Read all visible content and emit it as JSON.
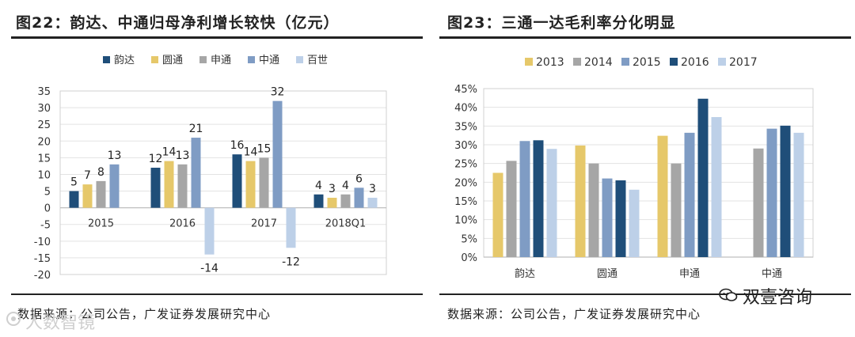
{
  "left": {
    "title": "图22：韵达、中通归母净利增长较快（亿元）",
    "source": "数据来源：公司公告，广发证券发展研究中心",
    "chart_data": {
      "type": "bar",
      "title": "图22：韵达、中通归母净利增长较快（亿元）",
      "categories": [
        "2015",
        "2016",
        "2017",
        "2018Q1"
      ],
      "series": [
        {
          "name": "韵达",
          "color": "#1f4e79",
          "values": [
            5,
            12,
            16,
            4
          ]
        },
        {
          "name": "圆通",
          "color": "#e6c86a",
          "values": [
            7,
            14,
            14,
            3
          ]
        },
        {
          "name": "申通",
          "color": "#a6a6a6",
          "values": [
            8,
            13,
            15,
            4
          ]
        },
        {
          "name": "中通",
          "color": "#7f9cc4",
          "values": [
            13,
            21,
            32,
            6
          ]
        },
        {
          "name": "百世",
          "color": "#bdd0e8",
          "values": [
            null,
            -14,
            -12,
            3
          ]
        }
      ],
      "labels": [
        [
          "5",
          "12",
          "16",
          "4"
        ],
        [
          "7",
          "14",
          "14",
          "3"
        ],
        [
          "8",
          "13",
          "15",
          "4"
        ],
        [
          "13",
          "21",
          "32",
          "6"
        ],
        [
          "",
          "-14",
          "-12",
          "3"
        ]
      ],
      "yticks": [
        "35",
        "30",
        "25",
        "20",
        "15",
        "10",
        "5",
        "0",
        "-5",
        "-10",
        "-15",
        "-20"
      ],
      "ylim": [
        -20,
        35
      ],
      "xlabel": "",
      "ylabel": "",
      "legend": "top"
    }
  },
  "right": {
    "title": "图23：三通一达毛利率分化明显",
    "source": "数据来源：公司公告，广发证券发展研究中心",
    "chart_data": {
      "type": "bar",
      "title": "图23：三通一达毛利率分化明显",
      "categories": [
        "韵达",
        "圆通",
        "申通",
        "中通"
      ],
      "series": [
        {
          "name": "2013",
          "color": "#e6c86a",
          "values": [
            22.5,
            29.8,
            32.4,
            null
          ]
        },
        {
          "name": "2014",
          "color": "#a6a6a6",
          "values": [
            25.7,
            25.0,
            25.0,
            29.0
          ]
        },
        {
          "name": "2015",
          "color": "#7f9cc4",
          "values": [
            31.0,
            21.0,
            33.2,
            34.3
          ]
        },
        {
          "name": "2016",
          "color": "#1f4e79",
          "values": [
            31.2,
            20.5,
            42.3,
            35.1
          ]
        },
        {
          "name": "2017",
          "color": "#bdd0e8",
          "values": [
            28.9,
            18.0,
            37.4,
            33.2
          ]
        }
      ],
      "yticks": [
        "45%",
        "40%",
        "35%",
        "30%",
        "25%",
        "20%",
        "15%",
        "10%",
        "5%",
        "0%"
      ],
      "ylim": [
        0,
        45
      ],
      "xlabel": "",
      "ylabel": "",
      "legend": "top"
    }
  },
  "watermarks": {
    "left_text": "人数智镜",
    "brand_text": "双壹咨询"
  }
}
